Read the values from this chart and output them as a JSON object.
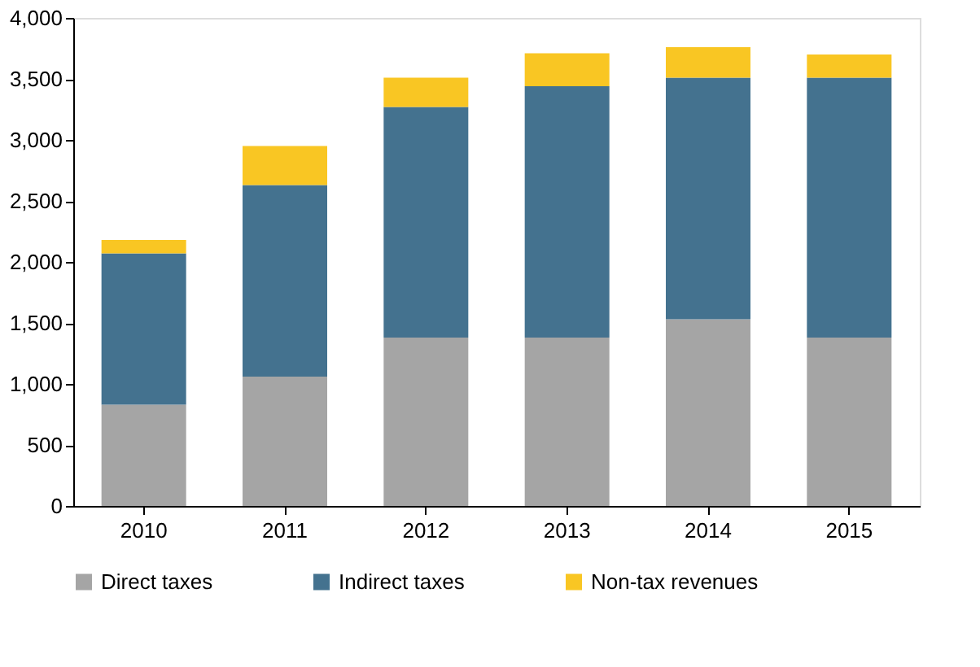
{
  "chart_data": {
    "type": "bar",
    "stacked": true,
    "categories": [
      "2010",
      "2011",
      "2012",
      "2013",
      "2014",
      "2015"
    ],
    "series": [
      {
        "name": "Direct taxes",
        "color": "#a5a5a5",
        "values": [
          830,
          1060,
          1380,
          1380,
          1530,
          1380
        ]
      },
      {
        "name": "Indirect taxes",
        "color": "#44728f",
        "values": [
          1240,
          1570,
          1890,
          2060,
          1980,
          2130
        ]
      },
      {
        "name": "Non-tax revenues",
        "color": "#f9c623",
        "values": [
          110,
          320,
          240,
          270,
          250,
          190
        ]
      }
    ],
    "ylim": [
      0,
      4000
    ],
    "yticks": [
      0,
      500,
      {
        "value": 1000,
        "label": "1,000"
      },
      {
        "value": 1500,
        "label": "1,500"
      },
      {
        "value": 2000,
        "label": "2,000"
      },
      {
        "value": 2500,
        "label": "2,500"
      },
      {
        "value": 3000,
        "label": "3,000"
      },
      {
        "value": 3500,
        "label": "3,500"
      },
      {
        "value": 4000,
        "label": "4,000"
      }
    ],
    "grid": false,
    "legend": "bottom"
  }
}
